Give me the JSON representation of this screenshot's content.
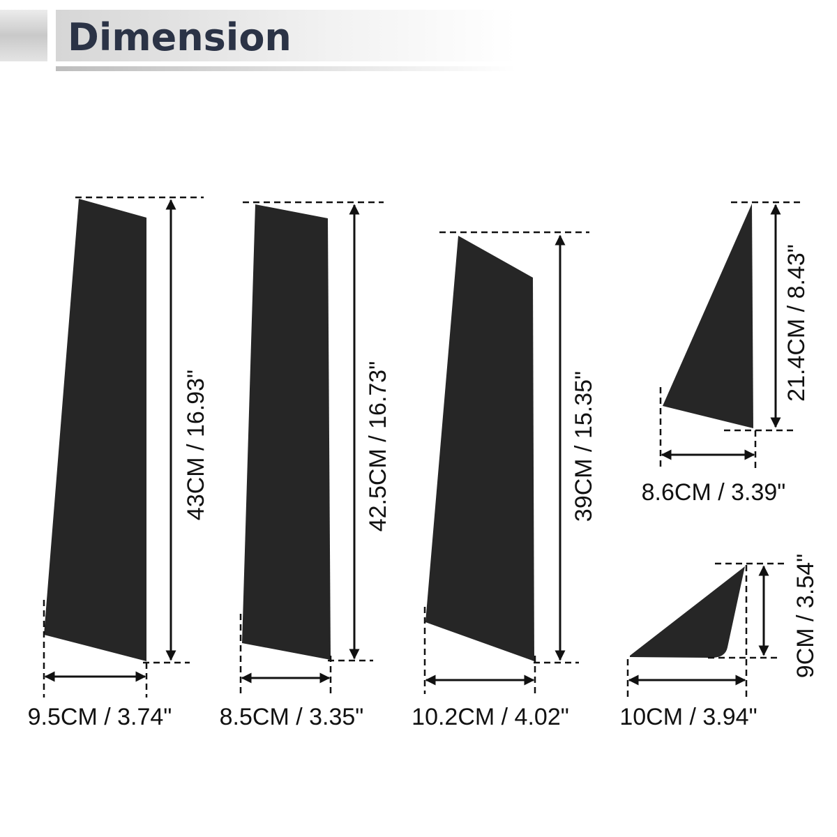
{
  "header": {
    "title": "Dimension"
  },
  "pieces": [
    {
      "height": "43CM / 16.93\"",
      "width": "9.5CM / 3.74\""
    },
    {
      "height": "42.5CM / 16.73\"",
      "width": "8.5CM / 3.35\""
    },
    {
      "height": "39CM / 15.35\"",
      "width": "10.2CM / 4.02\""
    },
    {
      "height": "21.4CM / 8.43\"",
      "width": "8.6CM / 3.39\""
    },
    {
      "height": "9CM / 3.54\"",
      "width": "10CM / 3.94\""
    }
  ]
}
